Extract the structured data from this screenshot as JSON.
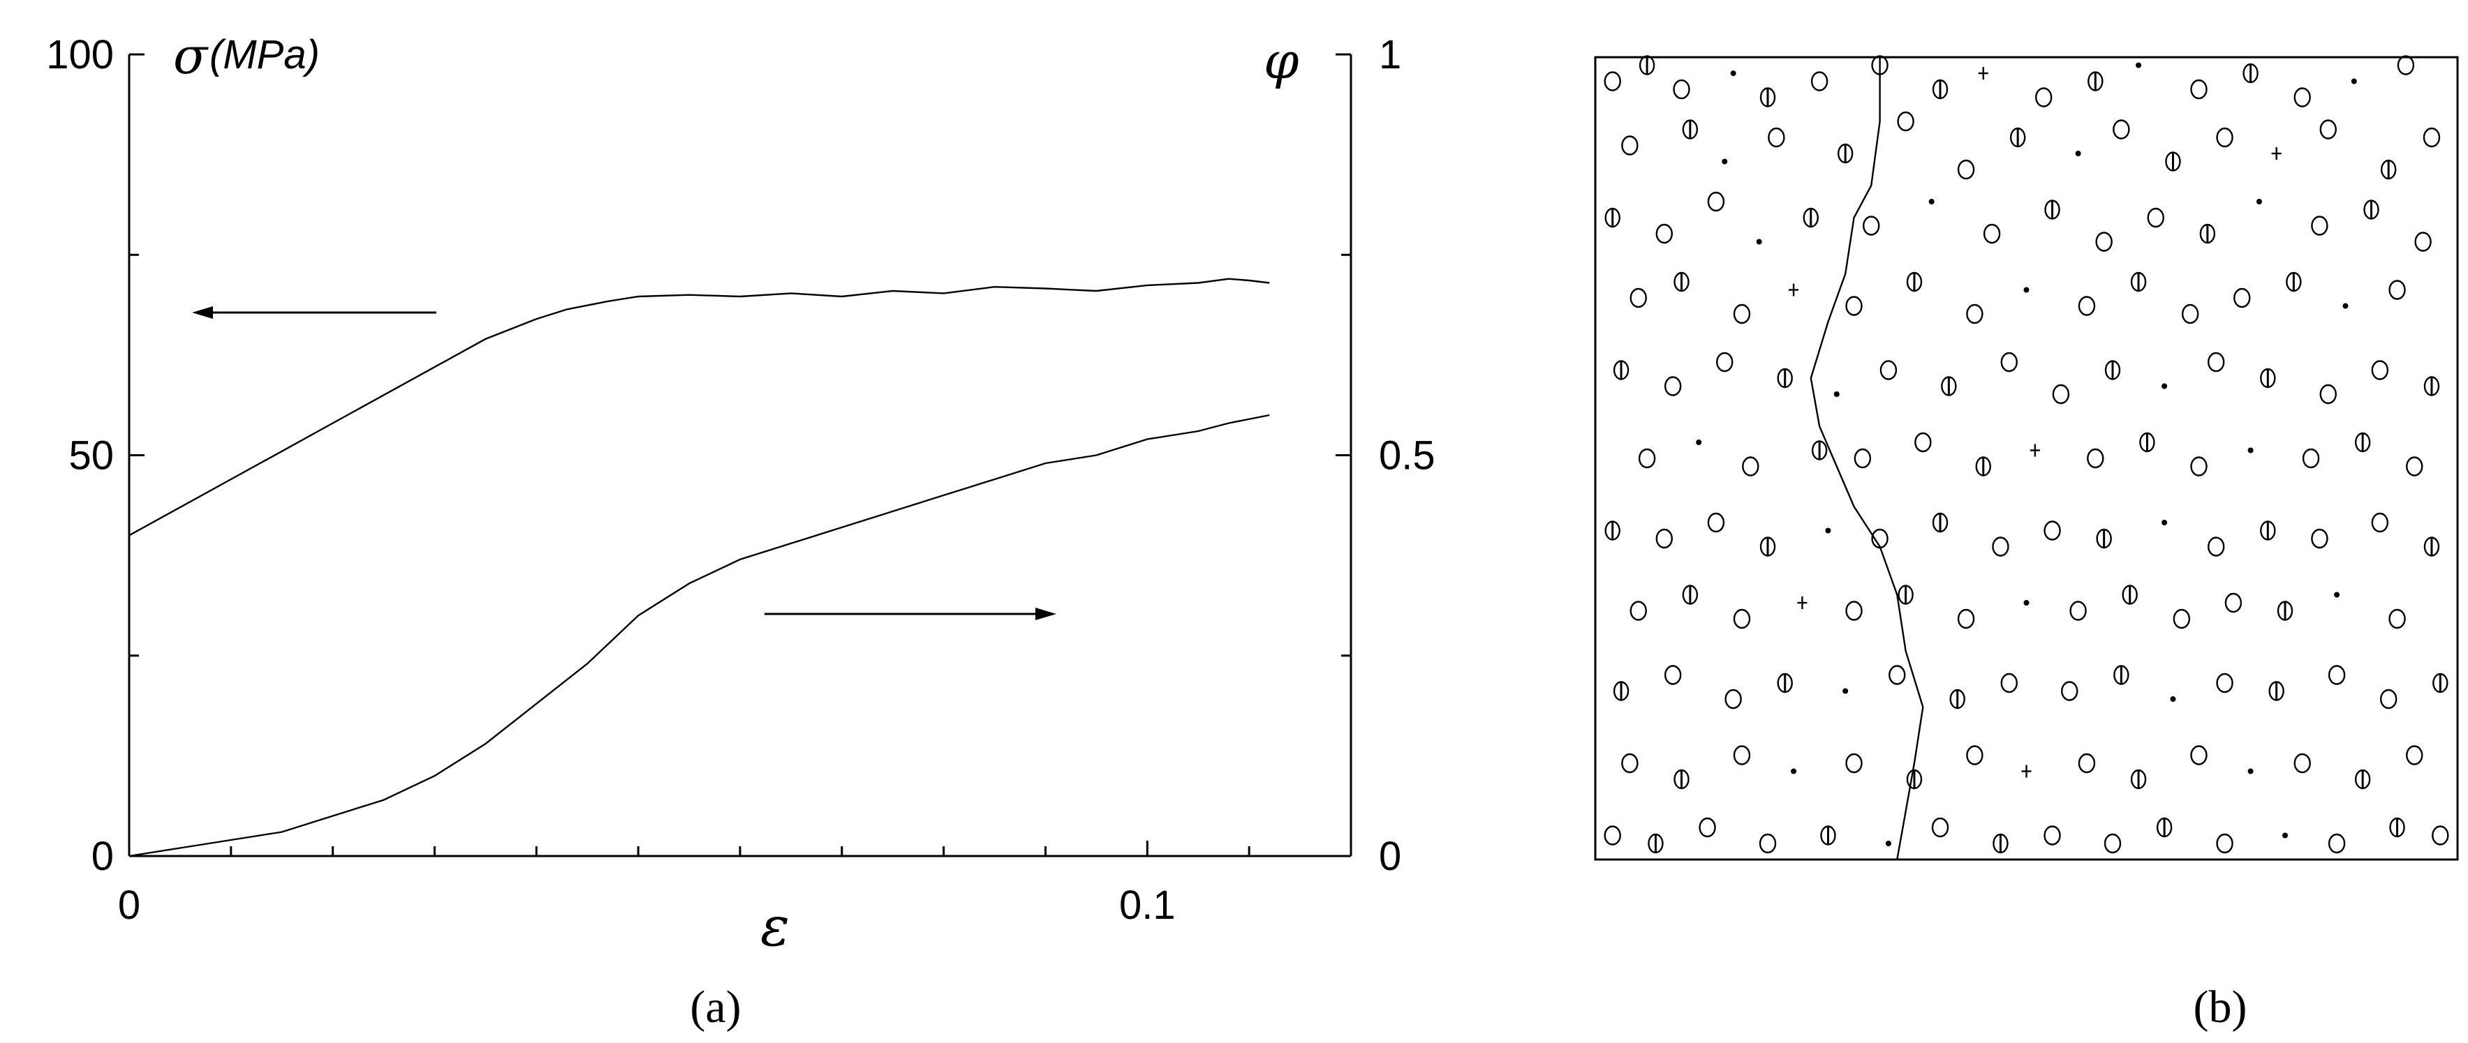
{
  "chart_data": [
    {
      "type": "line",
      "x_axis": {
        "symbol": "ε",
        "range": [
          0,
          0.12
        ],
        "tick_labels": [
          "0",
          "0.1"
        ],
        "ticks": [
          0,
          0.1
        ]
      },
      "y_axis_left": {
        "symbol": "σ",
        "unit": "(MPa)",
        "range": [
          0,
          100
        ],
        "tick_labels": [
          "0",
          "50",
          "100"
        ],
        "ticks": [
          0,
          50,
          100
        ]
      },
      "y_axis_right": {
        "symbol": "φ",
        "range": [
          0,
          1
        ],
        "tick_labels": [
          "0",
          "0.5",
          "1"
        ],
        "ticks": [
          0,
          0.5,
          1
        ]
      },
      "series": [
        {
          "axis": "left",
          "arrow": "left",
          "points": [
            [
              0,
              40
            ],
            [
              0.005,
              43.5
            ],
            [
              0.01,
              47
            ],
            [
              0.015,
              50.5
            ],
            [
              0.02,
              54
            ],
            [
              0.025,
              57.5
            ],
            [
              0.03,
              61
            ],
            [
              0.035,
              64.5
            ],
            [
              0.04,
              67
            ],
            [
              0.043,
              68.2
            ],
            [
              0.047,
              69.2
            ],
            [
              0.05,
              69.8
            ],
            [
              0.055,
              70
            ],
            [
              0.06,
              69.8
            ],
            [
              0.065,
              70.2
            ],
            [
              0.07,
              69.8
            ],
            [
              0.075,
              70.5
            ],
            [
              0.08,
              70.2
            ],
            [
              0.085,
              71
            ],
            [
              0.09,
              70.8
            ],
            [
              0.095,
              70.5
            ],
            [
              0.1,
              71.2
            ],
            [
              0.105,
              71.5
            ],
            [
              0.108,
              72
            ],
            [
              0.11,
              71.8
            ],
            [
              0.112,
              71.5
            ]
          ]
        },
        {
          "axis": "right",
          "arrow": "right",
          "points": [
            [
              0,
              0
            ],
            [
              0.005,
              0.01
            ],
            [
              0.01,
              0.02
            ],
            [
              0.015,
              0.03
            ],
            [
              0.02,
              0.05
            ],
            [
              0.025,
              0.07
            ],
            [
              0.03,
              0.1
            ],
            [
              0.035,
              0.14
            ],
            [
              0.04,
              0.19
            ],
            [
              0.045,
              0.24
            ],
            [
              0.05,
              0.3
            ],
            [
              0.055,
              0.34
            ],
            [
              0.06,
              0.37
            ],
            [
              0.065,
              0.39
            ],
            [
              0.07,
              0.41
            ],
            [
              0.075,
              0.43
            ],
            [
              0.08,
              0.45
            ],
            [
              0.085,
              0.47
            ],
            [
              0.09,
              0.49
            ],
            [
              0.095,
              0.5
            ],
            [
              0.1,
              0.52
            ],
            [
              0.105,
              0.53
            ],
            [
              0.108,
              0.54
            ],
            [
              0.112,
              0.55
            ]
          ]
        }
      ],
      "caption": "(a)"
    },
    {
      "type": "scatter",
      "caption": "(b)",
      "x_range": [
        0,
        1
      ],
      "y_range": [
        0,
        1
      ],
      "markers": [
        {
          "x": 0.02,
          "y": 0.97,
          "s": "O"
        },
        {
          "x": 0.06,
          "y": 0.99,
          "s": "ring"
        },
        {
          "x": 0.1,
          "y": 0.96,
          "s": "O"
        },
        {
          "x": 0.16,
          "y": 0.98,
          "s": "dot"
        },
        {
          "x": 0.2,
          "y": 0.95,
          "s": "ring"
        },
        {
          "x": 0.26,
          "y": 0.97,
          "s": "O"
        },
        {
          "x": 0.33,
          "y": 0.99,
          "s": "O"
        },
        {
          "x": 0.4,
          "y": 0.96,
          "s": "ring"
        },
        {
          "x": 0.45,
          "y": 0.98,
          "s": "plus"
        },
        {
          "x": 0.52,
          "y": 0.95,
          "s": "O"
        },
        {
          "x": 0.58,
          "y": 0.97,
          "s": "ring"
        },
        {
          "x": 0.63,
          "y": 0.99,
          "s": "dot"
        },
        {
          "x": 0.7,
          "y": 0.96,
          "s": "O"
        },
        {
          "x": 0.76,
          "y": 0.98,
          "s": "ring"
        },
        {
          "x": 0.82,
          "y": 0.95,
          "s": "O"
        },
        {
          "x": 0.88,
          "y": 0.97,
          "s": "dot"
        },
        {
          "x": 0.94,
          "y": 0.99,
          "s": "O"
        },
        {
          "x": 0.04,
          "y": 0.89,
          "s": "O"
        },
        {
          "x": 0.11,
          "y": 0.91,
          "s": "ring"
        },
        {
          "x": 0.15,
          "y": 0.87,
          "s": "dot"
        },
        {
          "x": 0.21,
          "y": 0.9,
          "s": "O"
        },
        {
          "x": 0.29,
          "y": 0.88,
          "s": "ring"
        },
        {
          "x": 0.36,
          "y": 0.92,
          "s": "O"
        },
        {
          "x": 0.43,
          "y": 0.86,
          "s": "O"
        },
        {
          "x": 0.49,
          "y": 0.9,
          "s": "ring"
        },
        {
          "x": 0.56,
          "y": 0.88,
          "s": "dot"
        },
        {
          "x": 0.61,
          "y": 0.91,
          "s": "O"
        },
        {
          "x": 0.67,
          "y": 0.87,
          "s": "ring"
        },
        {
          "x": 0.73,
          "y": 0.9,
          "s": "O"
        },
        {
          "x": 0.79,
          "y": 0.88,
          "s": "plus"
        },
        {
          "x": 0.85,
          "y": 0.91,
          "s": "O"
        },
        {
          "x": 0.92,
          "y": 0.86,
          "s": "ring"
        },
        {
          "x": 0.97,
          "y": 0.9,
          "s": "O"
        },
        {
          "x": 0.02,
          "y": 0.8,
          "s": "ring"
        },
        {
          "x": 0.08,
          "y": 0.78,
          "s": "O"
        },
        {
          "x": 0.14,
          "y": 0.82,
          "s": "O"
        },
        {
          "x": 0.19,
          "y": 0.77,
          "s": "dot"
        },
        {
          "x": 0.25,
          "y": 0.8,
          "s": "ring"
        },
        {
          "x": 0.32,
          "y": 0.79,
          "s": "O"
        },
        {
          "x": 0.39,
          "y": 0.82,
          "s": "dot"
        },
        {
          "x": 0.46,
          "y": 0.78,
          "s": "O"
        },
        {
          "x": 0.53,
          "y": 0.81,
          "s": "ring"
        },
        {
          "x": 0.59,
          "y": 0.77,
          "s": "O"
        },
        {
          "x": 0.65,
          "y": 0.8,
          "s": "O"
        },
        {
          "x": 0.71,
          "y": 0.78,
          "s": "ring"
        },
        {
          "x": 0.77,
          "y": 0.82,
          "s": "dot"
        },
        {
          "x": 0.84,
          "y": 0.79,
          "s": "O"
        },
        {
          "x": 0.9,
          "y": 0.81,
          "s": "ring"
        },
        {
          "x": 0.96,
          "y": 0.77,
          "s": "O"
        },
        {
          "x": 0.05,
          "y": 0.7,
          "s": "O"
        },
        {
          "x": 0.1,
          "y": 0.72,
          "s": "ring"
        },
        {
          "x": 0.17,
          "y": 0.68,
          "s": "O"
        },
        {
          "x": 0.23,
          "y": 0.71,
          "s": "plus"
        },
        {
          "x": 0.3,
          "y": 0.69,
          "s": "O"
        },
        {
          "x": 0.37,
          "y": 0.72,
          "s": "ring"
        },
        {
          "x": 0.44,
          "y": 0.68,
          "s": "O"
        },
        {
          "x": 0.5,
          "y": 0.71,
          "s": "dot"
        },
        {
          "x": 0.57,
          "y": 0.69,
          "s": "O"
        },
        {
          "x": 0.63,
          "y": 0.72,
          "s": "ring"
        },
        {
          "x": 0.69,
          "y": 0.68,
          "s": "O"
        },
        {
          "x": 0.75,
          "y": 0.7,
          "s": "O"
        },
        {
          "x": 0.81,
          "y": 0.72,
          "s": "ring"
        },
        {
          "x": 0.87,
          "y": 0.69,
          "s": "dot"
        },
        {
          "x": 0.93,
          "y": 0.71,
          "s": "O"
        },
        {
          "x": 0.03,
          "y": 0.61,
          "s": "ring"
        },
        {
          "x": 0.09,
          "y": 0.59,
          "s": "O"
        },
        {
          "x": 0.15,
          "y": 0.62,
          "s": "O"
        },
        {
          "x": 0.22,
          "y": 0.6,
          "s": "ring"
        },
        {
          "x": 0.28,
          "y": 0.58,
          "s": "dot"
        },
        {
          "x": 0.34,
          "y": 0.61,
          "s": "O"
        },
        {
          "x": 0.41,
          "y": 0.59,
          "s": "ring"
        },
        {
          "x": 0.48,
          "y": 0.62,
          "s": "O"
        },
        {
          "x": 0.54,
          "y": 0.58,
          "s": "O"
        },
        {
          "x": 0.6,
          "y": 0.61,
          "s": "ring"
        },
        {
          "x": 0.66,
          "y": 0.59,
          "s": "dot"
        },
        {
          "x": 0.72,
          "y": 0.62,
          "s": "O"
        },
        {
          "x": 0.78,
          "y": 0.6,
          "s": "ring"
        },
        {
          "x": 0.85,
          "y": 0.58,
          "s": "O"
        },
        {
          "x": 0.91,
          "y": 0.61,
          "s": "O"
        },
        {
          "x": 0.97,
          "y": 0.59,
          "s": "ring"
        },
        {
          "x": 0.06,
          "y": 0.5,
          "s": "O"
        },
        {
          "x": 0.12,
          "y": 0.52,
          "s": "dot"
        },
        {
          "x": 0.18,
          "y": 0.49,
          "s": "O"
        },
        {
          "x": 0.26,
          "y": 0.51,
          "s": "ring"
        },
        {
          "x": 0.31,
          "y": 0.5,
          "s": "O"
        },
        {
          "x": 0.38,
          "y": 0.52,
          "s": "O"
        },
        {
          "x": 0.45,
          "y": 0.49,
          "s": "ring"
        },
        {
          "x": 0.51,
          "y": 0.51,
          "s": "plus"
        },
        {
          "x": 0.58,
          "y": 0.5,
          "s": "O"
        },
        {
          "x": 0.64,
          "y": 0.52,
          "s": "ring"
        },
        {
          "x": 0.7,
          "y": 0.49,
          "s": "O"
        },
        {
          "x": 0.76,
          "y": 0.51,
          "s": "dot"
        },
        {
          "x": 0.83,
          "y": 0.5,
          "s": "O"
        },
        {
          "x": 0.89,
          "y": 0.52,
          "s": "ring"
        },
        {
          "x": 0.95,
          "y": 0.49,
          "s": "O"
        },
        {
          "x": 0.02,
          "y": 0.41,
          "s": "ring"
        },
        {
          "x": 0.08,
          "y": 0.4,
          "s": "O"
        },
        {
          "x": 0.14,
          "y": 0.42,
          "s": "O"
        },
        {
          "x": 0.2,
          "y": 0.39,
          "s": "ring"
        },
        {
          "x": 0.27,
          "y": 0.41,
          "s": "dot"
        },
        {
          "x": 0.33,
          "y": 0.4,
          "s": "O"
        },
        {
          "x": 0.4,
          "y": 0.42,
          "s": "ring"
        },
        {
          "x": 0.47,
          "y": 0.39,
          "s": "O"
        },
        {
          "x": 0.53,
          "y": 0.41,
          "s": "O"
        },
        {
          "x": 0.59,
          "y": 0.4,
          "s": "ring"
        },
        {
          "x": 0.66,
          "y": 0.42,
          "s": "dot"
        },
        {
          "x": 0.72,
          "y": 0.39,
          "s": "O"
        },
        {
          "x": 0.78,
          "y": 0.41,
          "s": "ring"
        },
        {
          "x": 0.84,
          "y": 0.4,
          "s": "O"
        },
        {
          "x": 0.91,
          "y": 0.42,
          "s": "O"
        },
        {
          "x": 0.97,
          "y": 0.39,
          "s": "ring"
        },
        {
          "x": 0.05,
          "y": 0.31,
          "s": "O"
        },
        {
          "x": 0.11,
          "y": 0.33,
          "s": "ring"
        },
        {
          "x": 0.17,
          "y": 0.3,
          "s": "O"
        },
        {
          "x": 0.24,
          "y": 0.32,
          "s": "plus"
        },
        {
          "x": 0.3,
          "y": 0.31,
          "s": "O"
        },
        {
          "x": 0.36,
          "y": 0.33,
          "s": "ring"
        },
        {
          "x": 0.43,
          "y": 0.3,
          "s": "O"
        },
        {
          "x": 0.5,
          "y": 0.32,
          "s": "dot"
        },
        {
          "x": 0.56,
          "y": 0.31,
          "s": "O"
        },
        {
          "x": 0.62,
          "y": 0.33,
          "s": "ring"
        },
        {
          "x": 0.68,
          "y": 0.3,
          "s": "O"
        },
        {
          "x": 0.74,
          "y": 0.32,
          "s": "O"
        },
        {
          "x": 0.8,
          "y": 0.31,
          "s": "ring"
        },
        {
          "x": 0.86,
          "y": 0.33,
          "s": "dot"
        },
        {
          "x": 0.93,
          "y": 0.3,
          "s": "O"
        },
        {
          "x": 0.03,
          "y": 0.21,
          "s": "ring"
        },
        {
          "x": 0.09,
          "y": 0.23,
          "s": "O"
        },
        {
          "x": 0.16,
          "y": 0.2,
          "s": "O"
        },
        {
          "x": 0.22,
          "y": 0.22,
          "s": "ring"
        },
        {
          "x": 0.29,
          "y": 0.21,
          "s": "dot"
        },
        {
          "x": 0.35,
          "y": 0.23,
          "s": "O"
        },
        {
          "x": 0.42,
          "y": 0.2,
          "s": "ring"
        },
        {
          "x": 0.48,
          "y": 0.22,
          "s": "O"
        },
        {
          "x": 0.55,
          "y": 0.21,
          "s": "O"
        },
        {
          "x": 0.61,
          "y": 0.23,
          "s": "ring"
        },
        {
          "x": 0.67,
          "y": 0.2,
          "s": "dot"
        },
        {
          "x": 0.73,
          "y": 0.22,
          "s": "O"
        },
        {
          "x": 0.79,
          "y": 0.21,
          "s": "ring"
        },
        {
          "x": 0.86,
          "y": 0.23,
          "s": "O"
        },
        {
          "x": 0.92,
          "y": 0.2,
          "s": "O"
        },
        {
          "x": 0.98,
          "y": 0.22,
          "s": "ring"
        },
        {
          "x": 0.04,
          "y": 0.12,
          "s": "O"
        },
        {
          "x": 0.1,
          "y": 0.1,
          "s": "ring"
        },
        {
          "x": 0.17,
          "y": 0.13,
          "s": "O"
        },
        {
          "x": 0.23,
          "y": 0.11,
          "s": "dot"
        },
        {
          "x": 0.3,
          "y": 0.12,
          "s": "O"
        },
        {
          "x": 0.37,
          "y": 0.1,
          "s": "ring"
        },
        {
          "x": 0.44,
          "y": 0.13,
          "s": "O"
        },
        {
          "x": 0.5,
          "y": 0.11,
          "s": "plus"
        },
        {
          "x": 0.57,
          "y": 0.12,
          "s": "O"
        },
        {
          "x": 0.63,
          "y": 0.1,
          "s": "ring"
        },
        {
          "x": 0.7,
          "y": 0.13,
          "s": "O"
        },
        {
          "x": 0.76,
          "y": 0.11,
          "s": "dot"
        },
        {
          "x": 0.82,
          "y": 0.12,
          "s": "O"
        },
        {
          "x": 0.89,
          "y": 0.1,
          "s": "ring"
        },
        {
          "x": 0.95,
          "y": 0.13,
          "s": "O"
        },
        {
          "x": 0.02,
          "y": 0.03,
          "s": "O"
        },
        {
          "x": 0.07,
          "y": 0.02,
          "s": "ring"
        },
        {
          "x": 0.13,
          "y": 0.04,
          "s": "O"
        },
        {
          "x": 0.2,
          "y": 0.02,
          "s": "O"
        },
        {
          "x": 0.27,
          "y": 0.03,
          "s": "ring"
        },
        {
          "x": 0.34,
          "y": 0.02,
          "s": "dot"
        },
        {
          "x": 0.4,
          "y": 0.04,
          "s": "O"
        },
        {
          "x": 0.47,
          "y": 0.02,
          "s": "ring"
        },
        {
          "x": 0.53,
          "y": 0.03,
          "s": "O"
        },
        {
          "x": 0.6,
          "y": 0.02,
          "s": "O"
        },
        {
          "x": 0.66,
          "y": 0.04,
          "s": "ring"
        },
        {
          "x": 0.73,
          "y": 0.02,
          "s": "O"
        },
        {
          "x": 0.8,
          "y": 0.03,
          "s": "dot"
        },
        {
          "x": 0.86,
          "y": 0.02,
          "s": "O"
        },
        {
          "x": 0.93,
          "y": 0.04,
          "s": "ring"
        },
        {
          "x": 0.98,
          "y": 0.03,
          "s": "O"
        }
      ],
      "crack_path": [
        [
          0.33,
          1.0
        ],
        [
          0.33,
          0.92
        ],
        [
          0.32,
          0.84
        ],
        [
          0.3,
          0.8
        ],
        [
          0.29,
          0.73
        ],
        [
          0.27,
          0.67
        ],
        [
          0.25,
          0.6
        ],
        [
          0.26,
          0.54
        ],
        [
          0.28,
          0.49
        ],
        [
          0.3,
          0.44
        ],
        [
          0.33,
          0.39
        ],
        [
          0.35,
          0.33
        ],
        [
          0.36,
          0.26
        ],
        [
          0.38,
          0.19
        ],
        [
          0.37,
          0.12
        ],
        [
          0.36,
          0.06
        ],
        [
          0.35,
          0.0
        ]
      ]
    }
  ]
}
